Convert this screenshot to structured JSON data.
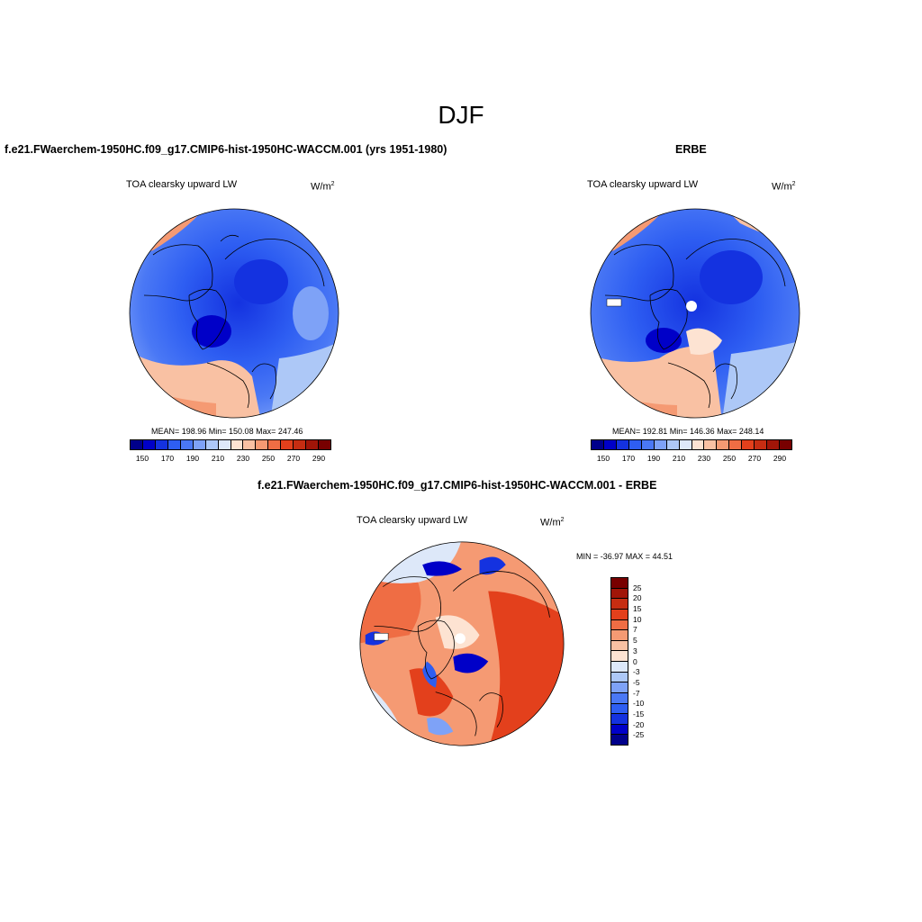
{
  "main_title": "DJF",
  "panels": [
    {
      "title": "f.e21.FWaerchem-1950HC.f09_g17.CMIP6-hist-1950HC-WACCM.001 (yrs 1951-1980)",
      "variable": "TOA clearsky upward LW",
      "units_base": "W/m",
      "units_exp": "2",
      "stats": "MEAN= 198.96  Min= 150.08  Max= 247.46"
    },
    {
      "title": "ERBE",
      "variable": "TOA clearsky upward LW",
      "units_base": "W/m",
      "units_exp": "2",
      "stats": "MEAN= 192.81  Min= 146.36  Max= 248.14"
    },
    {
      "title": "f.e21.FWaerchem-1950HC.f09_g17.CMIP6-hist-1950HC-WACCM.001 - ERBE",
      "variable": "TOA clearsky upward LW",
      "units_base": "W/m",
      "units_exp": "2",
      "stats": "MIN = -36.97 MAX =  44.51"
    }
  ],
  "abs_colorbar": {
    "colors": [
      "#00008b",
      "#0000c8",
      "#1432e0",
      "#2e5ef2",
      "#4a78f5",
      "#7ea2f7",
      "#adc8f7",
      "#dde8f9",
      "#fde3d2",
      "#f9c1a3",
      "#f59a73",
      "#ef6d44",
      "#e3401c",
      "#c62d12",
      "#a11508",
      "#780000"
    ],
    "labels": [
      "150",
      "170",
      "190",
      "210",
      "230",
      "250",
      "270",
      "290"
    ]
  },
  "diff_colorbar": {
    "colors": [
      "#780000",
      "#a11508",
      "#c62d12",
      "#e3401c",
      "#ef6d44",
      "#f59a73",
      "#f9c1a3",
      "#fde3d2",
      "#dde8f9",
      "#adc8f7",
      "#7ea2f7",
      "#4a78f5",
      "#2e5ef2",
      "#1432e0",
      "#0000c8",
      "#00008b"
    ],
    "labels": [
      "25",
      "20",
      "15",
      "10",
      "7",
      "5",
      "3",
      "0",
      "-3",
      "-5",
      "-7",
      "-10",
      "-15",
      "-20",
      "-25"
    ]
  }
}
